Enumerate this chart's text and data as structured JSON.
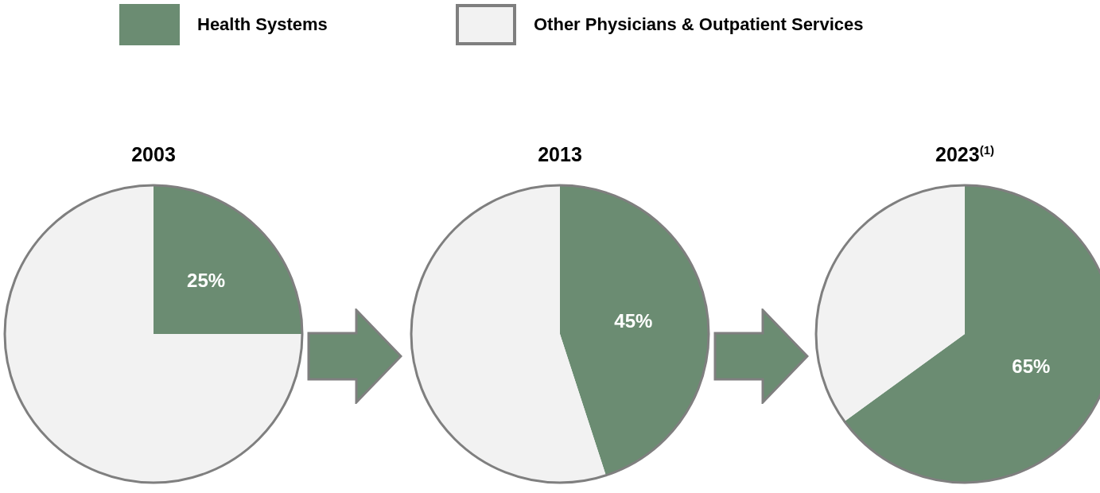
{
  "chart_data": [
    {
      "type": "pie",
      "title": "2003",
      "categories": [
        "Health Systems",
        "Other Physicians & Outpatient Services"
      ],
      "values": [
        25,
        75
      ],
      "colors": [
        "#6b8c72",
        "#f2f2f2"
      ],
      "value_labels": [
        "25%",
        null
      ],
      "legend": "top"
    },
    {
      "type": "pie",
      "title": "2013",
      "categories": [
        null,
        null
      ],
      "values": [
        45,
        55
      ],
      "colors": [
        "#6b8c72",
        "#f2f2f2"
      ],
      "value_labels": [
        "45%",
        null
      ]
    },
    {
      "type": "pie",
      "title": "2023$^{(1)}$",
      "categories": [
        null,
        null
      ],
      "values": [
        65,
        35
      ],
      "colors": [
        "#6b8c72",
        "#f2f2f2"
      ],
      "value_labels": [
        "65%",
        null
      ]
    }
  ]
}
